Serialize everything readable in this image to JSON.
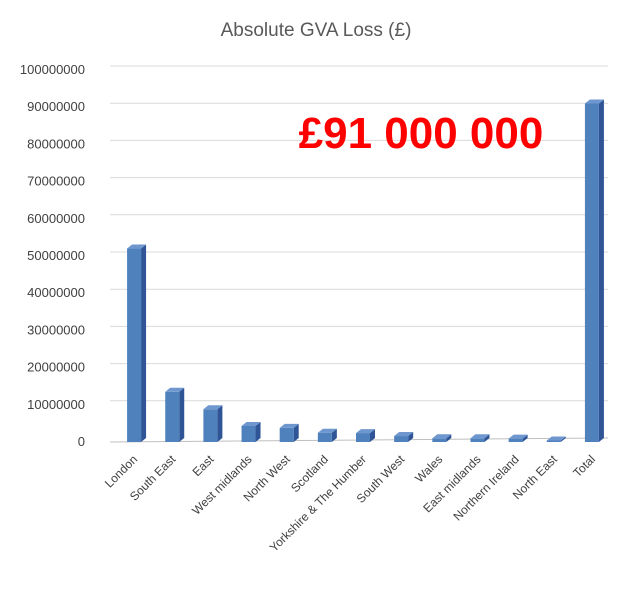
{
  "chart_data": {
    "type": "bar",
    "title": "Absolute GVA Loss (£)",
    "xlabel": "",
    "ylabel": "",
    "ylim": [
      0,
      100000000
    ],
    "yticks": [
      0,
      10000000,
      20000000,
      30000000,
      40000000,
      50000000,
      60000000,
      70000000,
      80000000,
      90000000,
      100000000
    ],
    "yticklabels": [
      "0",
      "10000000",
      "20000000",
      "30000000",
      "40000000",
      "50000000",
      "60000000",
      "70000000",
      "80000000",
      "90000000",
      "100000000"
    ],
    "grid": true,
    "legend": "none",
    "categories": [
      "London",
      "South East",
      "East",
      "West midlands",
      "North West",
      "Scotland",
      "Yorkshire & The Humber",
      "South West",
      "Wales",
      "East midlands",
      "Northern Ireland",
      "North East",
      "Total"
    ],
    "values": [
      52000000,
      13500000,
      8800000,
      4300000,
      3800000,
      2500000,
      2400000,
      1600000,
      1000000,
      1000000,
      900000,
      400000,
      91000000
    ],
    "annotation": "£91 000 000",
    "colors": {
      "bar": "#4f81bd",
      "bar_side": "#2f5597",
      "bar_top": "#6f97cf",
      "annotation": "#ff0000"
    }
  }
}
